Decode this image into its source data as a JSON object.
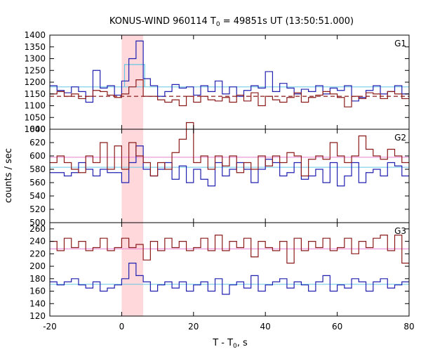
{
  "title_main": "KONUS-WIND 960114 T",
  "title_sub": "0",
  "title_rest": " = 49851s UT (13:50:51.000)",
  "xlabel_main": "T - T",
  "xlabel_sub": "0",
  "xlabel_rest": ", s",
  "ylabel": "counts / sec",
  "colors": {
    "blue": "#2020b0",
    "red": "#8b1a1a",
    "cyan": "#66c6e6",
    "pink": "#e87fd2",
    "shade": "#ffd8dc"
  },
  "chart_data": {
    "type": "line",
    "xlim": [
      -20,
      80
    ],
    "x_ticks": [
      -20,
      0,
      20,
      40,
      60,
      80
    ],
    "shaded_interval": [
      0,
      6
    ],
    "bin_width": 2,
    "panels": [
      {
        "name": "G1",
        "ylim": [
          1000,
          1400
        ],
        "y_ticks": [
          1000,
          1050,
          1100,
          1150,
          1200,
          1250,
          1300,
          1350,
          1400
        ],
        "bin_starts": [
          -20,
          -18,
          -16,
          -14,
          -12,
          -10,
          -8,
          -6,
          -4,
          -2,
          0,
          2,
          4,
          6,
          8,
          10,
          12,
          14,
          16,
          18,
          20,
          22,
          24,
          26,
          28,
          30,
          32,
          34,
          36,
          38,
          40,
          42,
          44,
          46,
          48,
          50,
          52,
          54,
          56,
          58,
          60,
          62,
          64,
          66,
          68,
          70,
          72,
          74,
          76,
          78
        ],
        "series": [
          {
            "color": "blue",
            "values": [
              1185,
              1165,
              1155,
              1180,
              1160,
              1115,
              1250,
              1175,
              1185,
              1145,
              1205,
              1300,
              1375,
              1215,
              1185,
              1140,
              1160,
              1190,
              1175,
              1180,
              1145,
              1185,
              1160,
              1205,
              1150,
              1180,
              1140,
              1165,
              1185,
              1175,
              1245,
              1160,
              1195,
              1175,
              1150,
              1170,
              1160,
              1185,
              1150,
              1175,
              1165,
              1185,
              1120,
              1135,
              1165,
              1185,
              1150,
              1160,
              1185,
              1150
            ]
          },
          {
            "color": "red",
            "values": [
              1150,
              1160,
              1140,
              1150,
              1130,
              1140,
              1165,
              1160,
              1145,
              1135,
              1150,
              1180,
              1210,
              1140,
              1140,
              1125,
              1115,
              1125,
              1100,
              1140,
              1115,
              1140,
              1125,
              1120,
              1135,
              1115,
              1145,
              1120,
              1155,
              1100,
              1140,
              1125,
              1115,
              1135,
              1155,
              1115,
              1135,
              1145,
              1160,
              1150,
              1135,
              1095,
              1140,
              1130,
              1155,
              1150,
              1130,
              1160,
              1150,
              1130
            ]
          }
        ],
        "background_levels": [
          {
            "color": "cyan",
            "dash": false,
            "value": 1180
          },
          {
            "color": "red",
            "dash": true,
            "value": 1140
          }
        ],
        "burst_box": {
          "x0": 0.8,
          "x1": 6.4,
          "value": 1275
        }
      },
      {
        "name": "G2",
        "ylim": [
          500,
          640
        ],
        "y_ticks": [
          500,
          520,
          540,
          560,
          580,
          600,
          620,
          640
        ],
        "bin_starts": [
          -20,
          -18,
          -16,
          -14,
          -12,
          -10,
          -8,
          -6,
          -4,
          -2,
          0,
          2,
          4,
          6,
          8,
          10,
          12,
          14,
          16,
          18,
          20,
          22,
          24,
          26,
          28,
          30,
          32,
          34,
          36,
          38,
          40,
          42,
          44,
          46,
          48,
          50,
          52,
          54,
          56,
          58,
          60,
          62,
          64,
          66,
          68,
          70,
          72,
          74,
          76,
          78
        ],
        "series": [
          {
            "color": "blue",
            "values": [
              575,
              575,
              570,
              575,
              590,
              580,
              570,
              580,
              575,
              575,
              560,
              590,
              615,
              580,
              570,
              580,
              590,
              565,
              585,
              560,
              580,
              565,
              555,
              590,
              570,
              580,
              590,
              580,
              560,
              580,
              595,
              590,
              570,
              575,
              590,
              565,
              570,
              580,
              560,
              590,
              555,
              570,
              590,
              560,
              575,
              580,
              570,
              590,
              585,
              570
            ]
          },
          {
            "color": "red",
            "values": [
              590,
              600,
              590,
              580,
              575,
              600,
              590,
              620,
              580,
              615,
              580,
              620,
              600,
              590,
              570,
              590,
              580,
              605,
              625,
              650,
              590,
              600,
              580,
              600,
              585,
              600,
              575,
              590,
              580,
              600,
              585,
              600,
              590,
              605,
              600,
              570,
              595,
              600,
              595,
              620,
              600,
              590,
              600,
              630,
              610,
              600,
              595,
              610,
              600,
              590
            ]
          }
        ],
        "background_levels": [
          {
            "color": "cyan",
            "dash": false,
            "value": 583
          },
          {
            "color": "pink",
            "dash": false,
            "value": 598
          }
        ]
      },
      {
        "name": "G3",
        "ylim": [
          120,
          270
        ],
        "y_ticks": [
          120,
          140,
          160,
          180,
          200,
          220,
          240,
          260
        ],
        "bin_starts": [
          -20,
          -18,
          -16,
          -14,
          -12,
          -10,
          -8,
          -6,
          -4,
          -2,
          0,
          2,
          4,
          6,
          8,
          10,
          12,
          14,
          16,
          18,
          20,
          22,
          24,
          26,
          28,
          30,
          32,
          34,
          36,
          38,
          40,
          42,
          44,
          46,
          48,
          50,
          52,
          54,
          56,
          58,
          60,
          62,
          64,
          66,
          68,
          70,
          72,
          74,
          76,
          78
        ],
        "series": [
          {
            "color": "blue",
            "values": [
              175,
              170,
              175,
              180,
              170,
              165,
              175,
              160,
              165,
              170,
              180,
              205,
              185,
              175,
              160,
              170,
              175,
              165,
              175,
              160,
              170,
              175,
              160,
              180,
              155,
              170,
              175,
              165,
              185,
              160,
              170,
              175,
              180,
              165,
              175,
              170,
              160,
              175,
              185,
              160,
              170,
              165,
              180,
              175,
              160,
              175,
              180,
              165,
              170,
              175
            ]
          },
          {
            "color": "red",
            "values": [
              240,
              225,
              245,
              230,
              240,
              225,
              230,
              245,
              225,
              230,
              245,
              230,
              235,
              210,
              240,
              225,
              245,
              230,
              240,
              225,
              230,
              245,
              225,
              250,
              225,
              240,
              230,
              245,
              215,
              240,
              230,
              225,
              240,
              205,
              245,
              225,
              240,
              230,
              245,
              225,
              230,
              245,
              220,
              240,
              230,
              245,
              250,
              225,
              250,
              205
            ]
          }
        ],
        "background_levels": [
          {
            "color": "cyan",
            "dash": false,
            "value": 171
          },
          {
            "color": "pink",
            "dash": false,
            "value": 228
          }
        ]
      }
    ]
  }
}
